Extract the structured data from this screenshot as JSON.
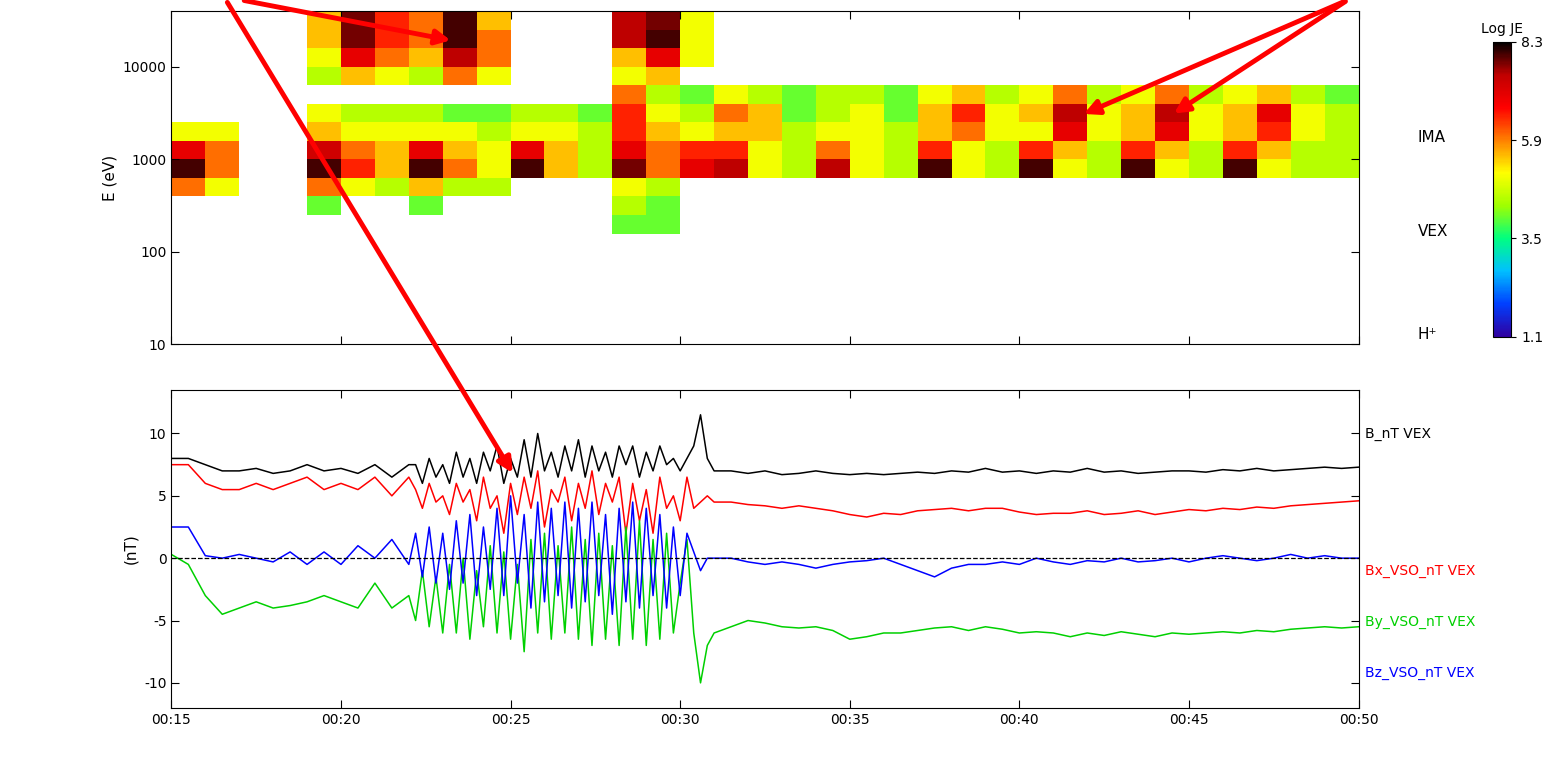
{
  "chart_data": [
    {
      "type": "heatmap",
      "ylabel": "E (eV)",
      "log": "y",
      "tick_labels": "y",
      "time_edges": [
        15,
        16,
        17,
        18,
        19,
        20,
        21,
        22,
        23,
        24,
        25,
        26,
        27,
        28,
        29,
        30,
        31,
        32,
        33,
        34,
        35,
        36,
        37,
        38,
        39,
        40,
        41,
        42,
        43,
        44,
        45,
        46,
        47,
        48,
        49,
        50
      ],
      "energy_edges": [
        158,
        251,
        398,
        631,
        1000,
        1585,
        2512,
        3981,
        6310,
        10000,
        15849,
        25119,
        39811
      ],
      "cells": [
        [
          null,
          null,
          null,
          null,
          null,
          null,
          null,
          null,
          null,
          null,
          null,
          null,
          null,
          4.0,
          4.0,
          null,
          null,
          null,
          null,
          null,
          null,
          null,
          null,
          null,
          null,
          null,
          null,
          null,
          null,
          null,
          null,
          null,
          null,
          null,
          null
        ],
        [
          null,
          null,
          null,
          null,
          4.0,
          null,
          null,
          4.0,
          null,
          null,
          null,
          null,
          null,
          4.5,
          4.0,
          null,
          null,
          null,
          null,
          null,
          null,
          null,
          null,
          null,
          null,
          null,
          null,
          null,
          null,
          null,
          null,
          null,
          null,
          null,
          null
        ],
        [
          6.0,
          5.0,
          null,
          null,
          6.0,
          5.0,
          4.5,
          5.5,
          4.5,
          4.5,
          null,
          null,
          null,
          5.0,
          4.5,
          null,
          null,
          null,
          null,
          null,
          null,
          null,
          null,
          null,
          null,
          null,
          null,
          null,
          null,
          null,
          null,
          null,
          null,
          null,
          null
        ],
        [
          8.0,
          6.0,
          null,
          null,
          8.0,
          6.5,
          5.5,
          8.0,
          6.0,
          5.0,
          8.0,
          5.5,
          4.5,
          7.8,
          6.0,
          7.0,
          7.5,
          5.0,
          4.5,
          7.5,
          5.0,
          4.5,
          8.0,
          5.0,
          4.5,
          8.0,
          5.0,
          4.5,
          8.0,
          5.0,
          4.5,
          8.0,
          5.0,
          4.5,
          4.5
        ],
        [
          7.0,
          6.0,
          null,
          null,
          7.3,
          6.0,
          5.5,
          7.0,
          5.5,
          5.0,
          7.0,
          5.5,
          4.5,
          7.0,
          6.0,
          6.5,
          6.5,
          5.0,
          4.5,
          6.0,
          5.0,
          4.5,
          6.5,
          5.0,
          4.5,
          6.5,
          5.5,
          4.5,
          6.5,
          5.5,
          4.5,
          6.5,
          5.5,
          4.5,
          4.5
        ],
        [
          5.0,
          5.0,
          null,
          null,
          5.5,
          5.0,
          5.0,
          5.0,
          5.0,
          4.5,
          5.0,
          5.0,
          4.5,
          6.5,
          5.5,
          5.0,
          5.5,
          5.5,
          4.5,
          5.0,
          5.0,
          4.5,
          5.5,
          6.0,
          5.0,
          5.0,
          7.0,
          5.0,
          5.5,
          7.0,
          5.0,
          5.5,
          6.5,
          5.0,
          4.5
        ],
        [
          null,
          null,
          null,
          null,
          5.0,
          4.5,
          4.5,
          4.5,
          4.0,
          4.0,
          4.5,
          4.5,
          4.0,
          6.5,
          5.0,
          4.5,
          6.0,
          5.5,
          4.0,
          4.5,
          5.0,
          4.0,
          5.5,
          6.5,
          5.0,
          5.5,
          7.5,
          5.0,
          5.5,
          7.5,
          5.0,
          5.5,
          7.0,
          5.0,
          4.5
        ],
        [
          null,
          null,
          null,
          null,
          null,
          null,
          null,
          null,
          null,
          null,
          null,
          null,
          null,
          6.0,
          4.5,
          4.0,
          5.0,
          4.5,
          4.0,
          4.5,
          4.5,
          4.0,
          5.0,
          5.5,
          4.5,
          5.0,
          6.0,
          4.5,
          5.0,
          6.0,
          4.5,
          5.0,
          5.5,
          4.5,
          4.0
        ],
        [
          null,
          null,
          null,
          null,
          4.5,
          5.5,
          5.0,
          4.5,
          6.0,
          5.0,
          null,
          null,
          null,
          5.0,
          5.5,
          null,
          null,
          null,
          null,
          null,
          null,
          null,
          null,
          null,
          null,
          null,
          null,
          null,
          null,
          null,
          null,
          null,
          null,
          null,
          null
        ],
        [
          null,
          null,
          null,
          null,
          5.0,
          7.0,
          6.0,
          5.5,
          7.5,
          6.0,
          null,
          null,
          null,
          5.5,
          7.0,
          5.0,
          null,
          null,
          null,
          null,
          null,
          null,
          null,
          null,
          null,
          null,
          null,
          null,
          null,
          null,
          null,
          null,
          null,
          null,
          null
        ],
        [
          null,
          null,
          null,
          null,
          5.5,
          7.8,
          6.5,
          6.0,
          8.0,
          6.0,
          null,
          null,
          null,
          7.5,
          8.0,
          5.0,
          null,
          null,
          null,
          null,
          null,
          null,
          null,
          null,
          null,
          null,
          null,
          null,
          null,
          null,
          null,
          null,
          null,
          null,
          null
        ],
        [
          null,
          null,
          null,
          null,
          5.5,
          7.8,
          6.5,
          6.0,
          8.0,
          5.5,
          null,
          null,
          null,
          7.5,
          7.8,
          5.0,
          null,
          null,
          null,
          null,
          null,
          null,
          null,
          null,
          null,
          null,
          null,
          null,
          null,
          null,
          null,
          null,
          null,
          null,
          null
        ]
      ],
      "xlim": [
        15,
        50
      ],
      "xticks": [
        {
          "value": 15,
          "label": "00:15"
        },
        {
          "value": 20,
          "label": "00:20"
        },
        {
          "value": 25,
          "label": "00:25"
        },
        {
          "value": 30,
          "label": "00:30"
        },
        {
          "value": 35,
          "label": "00:35"
        },
        {
          "value": 40,
          "label": "00:40"
        },
        {
          "value": 45,
          "label": "00:45"
        },
        {
          "value": 50,
          "label": "00:50"
        }
      ],
      "ylim": [
        10,
        39811
      ],
      "yticks": [
        10,
        100,
        1000,
        10000
      ],
      "colorbar": {
        "label": "Log JE",
        "range": [
          1.1,
          8.3
        ],
        "ticks": [
          8.3,
          5.9,
          3.5,
          1.1
        ]
      },
      "annotations": [
        "IMA",
        "VEX",
        "H⁺"
      ]
    },
    {
      "type": "line",
      "ylabel": "(nT)",
      "x": [
        15,
        15.5,
        16,
        16.5,
        17,
        17.5,
        18,
        18.5,
        19,
        19.5,
        20,
        20.5,
        21,
        21.5,
        22,
        22.2,
        22.4,
        22.6,
        22.8,
        23.0,
        23.2,
        23.4,
        23.6,
        23.8,
        24.0,
        24.2,
        24.4,
        24.6,
        24.8,
        25.0,
        25.2,
        25.4,
        25.6,
        25.8,
        26.0,
        26.2,
        26.4,
        26.6,
        26.8,
        27.0,
        27.2,
        27.4,
        27.6,
        27.8,
        28.0,
        28.2,
        28.4,
        28.6,
        28.8,
        29.0,
        29.2,
        29.4,
        29.6,
        29.8,
        30.0,
        30.2,
        30.4,
        30.6,
        30.8,
        31.0,
        31.5,
        32,
        32.5,
        33,
        33.5,
        34,
        34.5,
        35,
        35.5,
        36,
        36.5,
        37,
        37.5,
        38,
        38.5,
        39,
        39.5,
        40,
        40.5,
        41,
        41.5,
        42,
        42.5,
        43,
        43.5,
        44,
        44.5,
        45,
        45.5,
        46,
        46.5,
        47,
        47.5,
        48,
        48.5,
        49,
        49.5,
        50
      ],
      "series": [
        {
          "name": "B_nT VEX",
          "color": "#000000",
          "values": [
            8.0,
            8.0,
            7.5,
            7.0,
            7.0,
            7.2,
            6.8,
            7.0,
            7.5,
            7.0,
            7.2,
            6.8,
            7.5,
            6.5,
            7.5,
            7.5,
            6.0,
            8.0,
            6.5,
            7.5,
            6.0,
            8.5,
            6.5,
            8.0,
            6.0,
            8.5,
            7.0,
            9.0,
            6.0,
            8.0,
            6.5,
            9.5,
            6.5,
            10.0,
            7.0,
            8.5,
            6.5,
            9.0,
            7.0,
            9.5,
            6.5,
            9.0,
            7.0,
            8.5,
            6.5,
            9.0,
            7.5,
            9.0,
            6.5,
            8.5,
            7.0,
            9.0,
            7.5,
            8.0,
            7.0,
            8.0,
            9.0,
            11.5,
            8.0,
            7.0,
            7.0,
            6.8,
            7.0,
            6.7,
            6.8,
            7.0,
            6.8,
            6.7,
            6.8,
            6.7,
            6.8,
            6.9,
            6.8,
            7.0,
            6.9,
            7.2,
            6.9,
            7.0,
            6.8,
            7.0,
            6.9,
            7.2,
            6.9,
            7.0,
            6.8,
            6.9,
            7.0,
            7.0,
            6.9,
            7.1,
            7.0,
            7.2,
            7.0,
            7.1,
            7.2,
            7.3,
            7.2,
            7.3
          ]
        },
        {
          "name": "Bx_VSO_nT VEX",
          "color": "#ff0000",
          "values": [
            7.5,
            7.5,
            6.0,
            5.5,
            5.5,
            6.0,
            5.5,
            6.0,
            6.5,
            5.5,
            6.0,
            5.5,
            6.5,
            5.0,
            6.5,
            5.5,
            4.0,
            6.0,
            4.5,
            5.0,
            3.5,
            6.0,
            4.5,
            5.5,
            3.0,
            6.5,
            4.0,
            5.0,
            2.0,
            6.0,
            3.5,
            6.5,
            4.0,
            7.0,
            2.5,
            5.5,
            4.5,
            6.5,
            3.0,
            6.0,
            4.0,
            7.0,
            3.5,
            6.0,
            4.5,
            6.5,
            2.0,
            6.0,
            3.0,
            5.5,
            2.0,
            6.5,
            4.0,
            5.0,
            3.0,
            6.5,
            4.0,
            4.5,
            5.0,
            4.5,
            4.5,
            4.3,
            4.2,
            4.0,
            4.2,
            4.0,
            3.8,
            3.5,
            3.3,
            3.6,
            3.5,
            3.8,
            3.9,
            4.0,
            3.8,
            4.0,
            4.0,
            3.7,
            3.5,
            3.6,
            3.6,
            3.8,
            3.5,
            3.6,
            3.8,
            3.5,
            3.7,
            3.9,
            3.8,
            4.0,
            3.9,
            4.1,
            4.0,
            4.2,
            4.3,
            4.4,
            4.5,
            4.6
          ]
        },
        {
          "name": "By_VSO_nT VEX",
          "color": "#00d000",
          "values": [
            0.3,
            -0.5,
            -3.0,
            -4.5,
            -4.0,
            -3.5,
            -4.0,
            -3.8,
            -3.5,
            -3.0,
            -3.5,
            -4.0,
            -2.0,
            -4.0,
            -3.0,
            -5.0,
            -1.0,
            -5.5,
            -1.5,
            -6.0,
            -0.5,
            -6.0,
            0.0,
            -6.5,
            -1.0,
            -5.5,
            1.0,
            -6.0,
            0.5,
            -6.5,
            -0.5,
            -7.5,
            1.5,
            -6.0,
            2.0,
            -6.5,
            1.0,
            -6.0,
            2.5,
            -6.5,
            1.5,
            -7.0,
            2.0,
            -6.5,
            1.0,
            -7.0,
            2.5,
            -6.5,
            3.0,
            -7.0,
            1.5,
            -6.5,
            2.0,
            -6.0,
            -2.0,
            1.5,
            -6.0,
            -10.0,
            -7.0,
            -6.0,
            -5.5,
            -5.0,
            -5.2,
            -5.5,
            -5.6,
            -5.5,
            -5.8,
            -6.5,
            -6.3,
            -6.0,
            -6.0,
            -5.8,
            -5.6,
            -5.5,
            -5.8,
            -5.5,
            -5.7,
            -6.0,
            -5.9,
            -6.0,
            -6.3,
            -6.0,
            -6.2,
            -5.9,
            -6.1,
            -6.3,
            -6.0,
            -6.1,
            -6.0,
            -5.9,
            -6.0,
            -5.8,
            -5.9,
            -5.7,
            -5.6,
            -5.5,
            -5.6,
            -5.5
          ]
        },
        {
          "name": "Bz_VSO_nT VEX",
          "color": "#0000ff",
          "values": [
            2.5,
            2.5,
            0.2,
            0.0,
            0.3,
            0.0,
            -0.3,
            0.5,
            -0.5,
            0.5,
            -0.5,
            1.0,
            0.0,
            1.5,
            -0.5,
            2.0,
            -1.5,
            2.5,
            -2.0,
            2.0,
            -2.5,
            3.0,
            -2.0,
            3.5,
            -3.0,
            2.5,
            -2.5,
            4.0,
            -3.0,
            5.0,
            -2.0,
            3.5,
            -4.0,
            4.5,
            -3.5,
            4.0,
            -3.0,
            4.5,
            -4.0,
            4.0,
            -3.5,
            4.5,
            -3.0,
            3.5,
            -4.5,
            4.0,
            -3.5,
            4.5,
            -4.0,
            4.0,
            -3.0,
            3.5,
            -4.0,
            2.5,
            -3.0,
            2.0,
            0.5,
            -1.0,
            0.0,
            0.0,
            0.0,
            -0.3,
            -0.5,
            -0.3,
            -0.5,
            -0.8,
            -0.5,
            -0.3,
            -0.2,
            0.0,
            -0.5,
            -1.0,
            -1.5,
            -0.8,
            -0.5,
            -0.5,
            -0.3,
            -0.5,
            0.0,
            -0.3,
            -0.5,
            -0.2,
            -0.3,
            0.0,
            -0.3,
            -0.2,
            0.0,
            -0.3,
            0.0,
            0.2,
            0.0,
            -0.2,
            0.0,
            0.3,
            0.0,
            0.2,
            0.0,
            0.0
          ]
        }
      ],
      "hlines": [
        0
      ],
      "xlim": [
        15,
        50
      ],
      "xticks": [
        {
          "value": 15,
          "label": "00:15"
        },
        {
          "value": 20,
          "label": "00:20"
        },
        {
          "value": 25,
          "label": "00:25"
        },
        {
          "value": 30,
          "label": "00:30"
        },
        {
          "value": 35,
          "label": "00:35"
        },
        {
          "value": 40,
          "label": "00:40"
        },
        {
          "value": 45,
          "label": "00:45"
        },
        {
          "value": 50,
          "label": "00:50"
        }
      ],
      "ylim": [
        -12,
        13.5
      ],
      "yticks": [
        -10,
        -5,
        0,
        5,
        10
      ]
    }
  ]
}
